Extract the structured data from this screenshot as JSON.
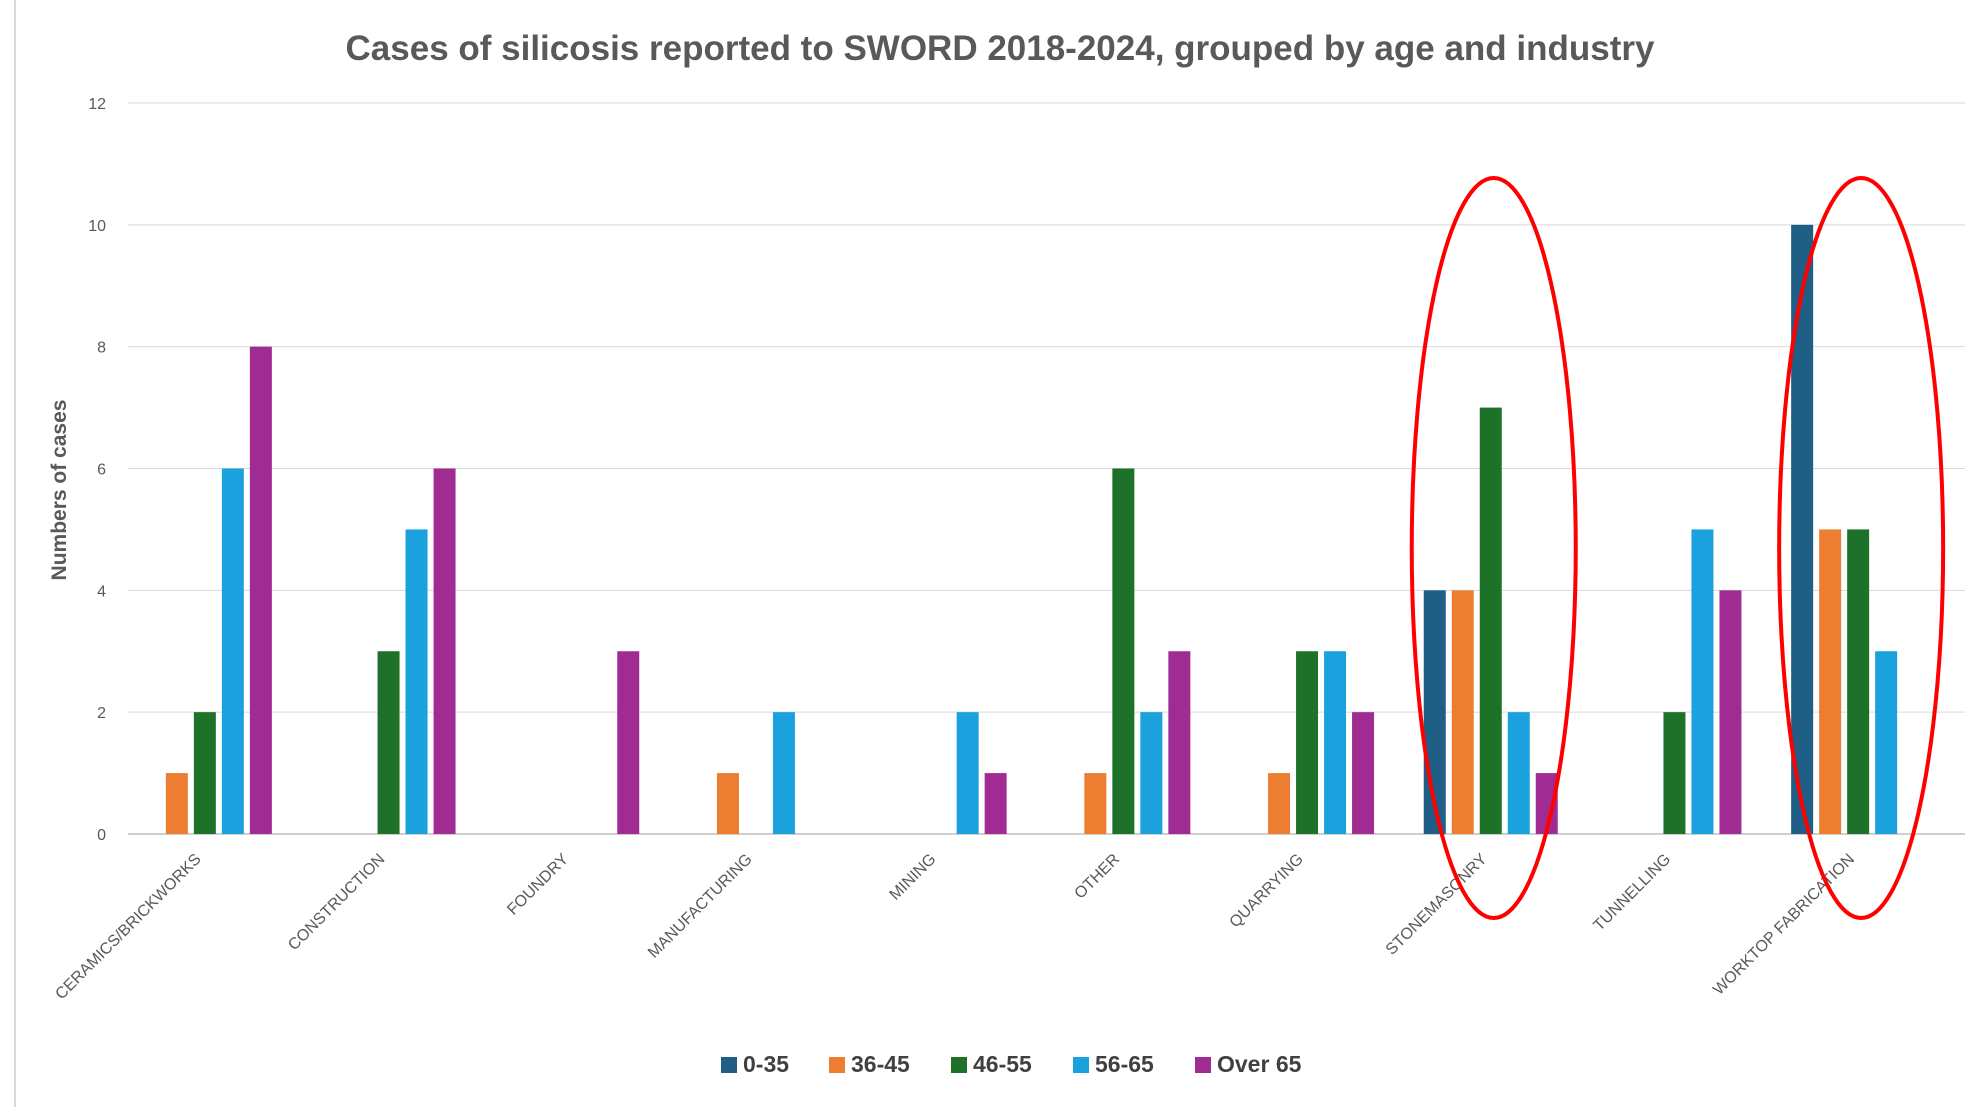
{
  "chart_data": {
    "type": "bar",
    "title": "Cases of silicosis reported to SWORD 2018-2024, grouped by age and industry",
    "xlabel": "",
    "ylabel": "Numbers of cases",
    "ylim": [
      0,
      12
    ],
    "yticks": [
      0,
      2,
      4,
      6,
      8,
      10,
      12
    ],
    "grid": true,
    "legend_position": "bottom",
    "categories": [
      "CERAMICS/BRICKWORKS",
      "CONSTRUCTION",
      "FOUNDRY",
      "MANUFACTURING",
      "MINING",
      "OTHER",
      "QUARRYING",
      "STONEMASONRY",
      "TUNNELLING",
      "WORKTOP FABRICATION"
    ],
    "series": [
      {
        "name": "0-35",
        "color": "#1f5f86",
        "values": [
          0,
          0,
          0,
          0,
          0,
          0,
          0,
          4,
          0,
          10
        ]
      },
      {
        "name": "36-45",
        "color": "#ed7d31",
        "values": [
          1,
          0,
          0,
          1,
          0,
          1,
          1,
          4,
          0,
          5
        ]
      },
      {
        "name": "46-55",
        "color": "#1e7128",
        "values": [
          2,
          3,
          0,
          0,
          0,
          6,
          3,
          7,
          2,
          5
        ]
      },
      {
        "name": "56-65",
        "color": "#1ba1dd",
        "values": [
          6,
          5,
          0,
          2,
          2,
          2,
          3,
          2,
          5,
          3
        ]
      },
      {
        "name": "Over 65",
        "color": "#a02b93",
        "values": [
          8,
          6,
          3,
          0,
          1,
          3,
          2,
          1,
          4,
          0
        ]
      }
    ],
    "highlights": [
      {
        "category": "STONEMASONRY",
        "shape": "ellipse",
        "color": "#ff0000"
      },
      {
        "category": "WORKTOP FABRICATION",
        "shape": "ellipse",
        "color": "#ff0000"
      }
    ]
  }
}
